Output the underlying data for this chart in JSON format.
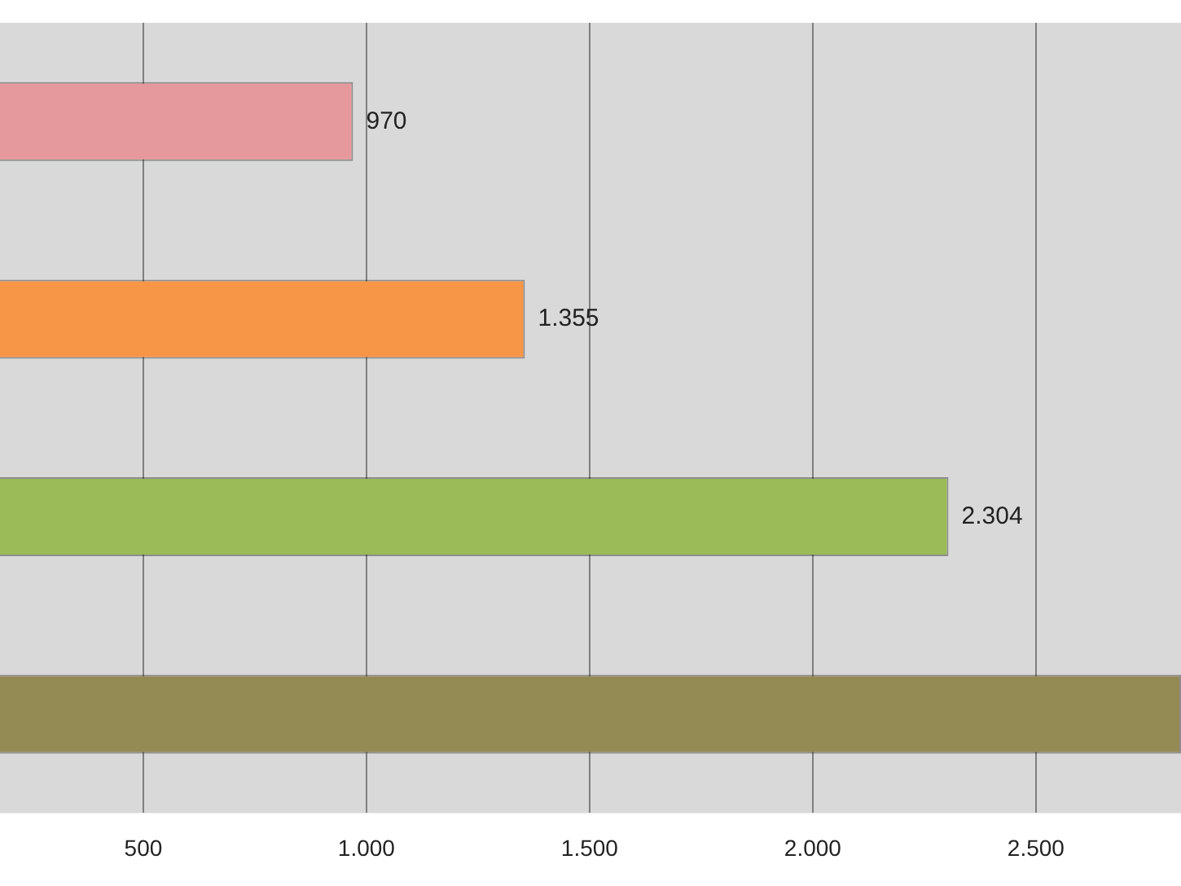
{
  "chart_data": {
    "type": "bar",
    "orientation": "horizontal",
    "categories": [
      null,
      null,
      null,
      null
    ],
    "values": [
      970,
      1355,
      2304,
      2825
    ],
    "colors": [
      "#e6999c",
      "#f79646",
      "#9bbb59",
      "#948a54"
    ],
    "value_labels": [
      "970",
      "1.355",
      "2.304",
      null
    ],
    "xlim": [
      179,
      2825
    ],
    "xticks": [
      {
        "value": 500,
        "label": "500"
      },
      {
        "value": 1000,
        "label": "1.000"
      },
      {
        "value": 1500,
        "label": "1.500"
      },
      {
        "value": 2000,
        "label": "2.000"
      },
      {
        "value": 2500,
        "label": "2.500"
      }
    ],
    "grid": "x",
    "legend": false
  }
}
